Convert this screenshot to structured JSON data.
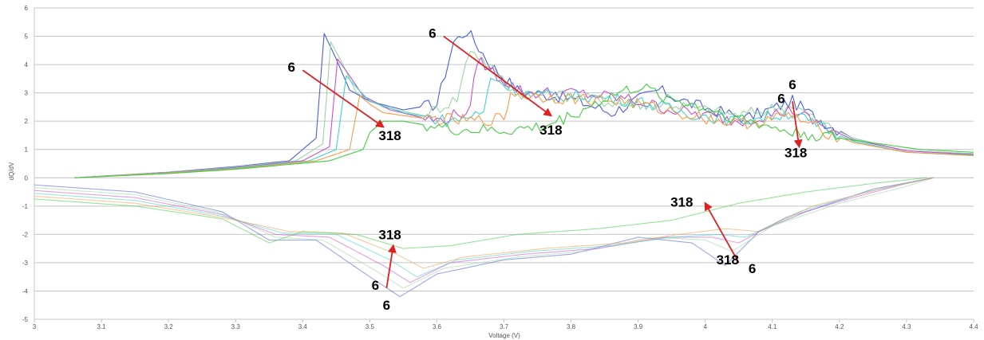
{
  "chart_data": {
    "type": "line",
    "title": "",
    "xlabel": "Voltage (V)",
    "ylabel": "dQ/dV",
    "xlim": [
      3.0,
      4.4
    ],
    "ylim": [
      -5,
      6
    ],
    "xticks": [
      "3",
      "3.1",
      "3.2",
      "3.3",
      "3.4",
      "3.5",
      "3.6",
      "3.7",
      "3.8",
      "3.9",
      "4",
      "4.1",
      "4.2",
      "4.3",
      "4.4"
    ],
    "yticks": [
      "6",
      "5",
      "4",
      "3",
      "2",
      "1",
      "0",
      "-1",
      "-2",
      "-3",
      "-4",
      "-5"
    ],
    "grid": "horizontal",
    "legend": "none",
    "series": [
      {
        "color": "#4a5fd6",
        "charge": [
          [
            3.06,
            0
          ],
          [
            3.2,
            0.2
          ],
          [
            3.3,
            0.4
          ],
          [
            3.38,
            0.6
          ],
          [
            3.42,
            1.4
          ],
          [
            3.432,
            5.1
          ],
          [
            3.45,
            4.2
          ],
          [
            3.47,
            3.1
          ],
          [
            3.5,
            2.7
          ],
          [
            3.55,
            2.4
          ],
          [
            3.6,
            2.6
          ],
          [
            3.625,
            4.8
          ],
          [
            3.645,
            5.2
          ],
          [
            3.68,
            4.0
          ],
          [
            3.72,
            3.1
          ],
          [
            3.8,
            2.8
          ],
          [
            3.86,
            2.3
          ],
          [
            3.93,
            3.1
          ],
          [
            3.98,
            2.6
          ],
          [
            4.06,
            2.1
          ],
          [
            4.13,
            2.7
          ],
          [
            4.16,
            2.2
          ],
          [
            4.22,
            1.4
          ],
          [
            4.3,
            0.95
          ],
          [
            4.4,
            0.85
          ]
        ],
        "discharge": [
          [
            3.0,
            -0.25
          ],
          [
            3.15,
            -0.5
          ],
          [
            3.28,
            -1.2
          ],
          [
            3.35,
            -2.2
          ],
          [
            3.42,
            -2.2
          ],
          [
            3.5,
            -3.5
          ],
          [
            3.545,
            -4.2
          ],
          [
            3.6,
            -3.4
          ],
          [
            3.7,
            -2.9
          ],
          [
            3.8,
            -2.7
          ],
          [
            3.9,
            -2.1
          ],
          [
            3.98,
            -2.3
          ],
          [
            4.03,
            -3.1
          ],
          [
            4.08,
            -1.9
          ],
          [
            4.15,
            -1.2
          ],
          [
            4.25,
            -0.4
          ],
          [
            4.34,
            0.0
          ]
        ]
      },
      {
        "color": "#9ad6a0",
        "charge": [
          [
            3.06,
            0
          ],
          [
            3.2,
            0.2
          ],
          [
            3.3,
            0.38
          ],
          [
            3.39,
            0.6
          ],
          [
            3.43,
            1.2
          ],
          [
            3.442,
            4.8
          ],
          [
            3.46,
            4.0
          ],
          [
            3.48,
            3.0
          ],
          [
            3.52,
            2.5
          ],
          [
            3.58,
            2.2
          ],
          [
            3.63,
            2.8
          ],
          [
            3.65,
            4.6
          ],
          [
            3.68,
            3.9
          ],
          [
            3.72,
            3.0
          ],
          [
            3.8,
            2.9
          ],
          [
            3.88,
            2.6
          ],
          [
            3.95,
            2.6
          ],
          [
            4.05,
            2.2
          ],
          [
            4.13,
            2.6
          ],
          [
            4.16,
            2.1
          ],
          [
            4.22,
            1.4
          ],
          [
            4.3,
            0.95
          ],
          [
            4.4,
            0.85
          ]
        ],
        "discharge": [
          [
            3.0,
            -0.35
          ],
          [
            3.15,
            -0.6
          ],
          [
            3.28,
            -1.25
          ],
          [
            3.36,
            -2.1
          ],
          [
            3.43,
            -2.2
          ],
          [
            3.51,
            -3.3
          ],
          [
            3.55,
            -3.9
          ],
          [
            3.61,
            -3.2
          ],
          [
            3.72,
            -2.8
          ],
          [
            3.82,
            -2.6
          ],
          [
            3.92,
            -2.1
          ],
          [
            4.0,
            -2.2
          ],
          [
            4.04,
            -2.6
          ],
          [
            4.1,
            -1.7
          ],
          [
            4.2,
            -0.9
          ],
          [
            4.3,
            -0.3
          ],
          [
            4.34,
            0.0
          ]
        ]
      },
      {
        "color": "#c850cf",
        "charge": [
          [
            3.06,
            0
          ],
          [
            3.2,
            0.19
          ],
          [
            3.3,
            0.36
          ],
          [
            3.4,
            0.6
          ],
          [
            3.44,
            1.1
          ],
          [
            3.452,
            4.2
          ],
          [
            3.47,
            3.6
          ],
          [
            3.49,
            2.9
          ],
          [
            3.53,
            2.4
          ],
          [
            3.6,
            2.0
          ],
          [
            3.65,
            2.4
          ],
          [
            3.66,
            4.2
          ],
          [
            3.69,
            3.6
          ],
          [
            3.73,
            3.0
          ],
          [
            3.8,
            3.0
          ],
          [
            3.88,
            2.8
          ],
          [
            3.95,
            2.4
          ],
          [
            4.05,
            2.0
          ],
          [
            4.13,
            2.4
          ],
          [
            4.16,
            2.0
          ],
          [
            4.22,
            1.35
          ],
          [
            4.3,
            0.95
          ],
          [
            4.4,
            0.82
          ]
        ],
        "discharge": [
          [
            3.0,
            -0.45
          ],
          [
            3.15,
            -0.7
          ],
          [
            3.28,
            -1.3
          ],
          [
            3.36,
            -2.0
          ],
          [
            3.44,
            -2.1
          ],
          [
            3.52,
            -3.1
          ],
          [
            3.56,
            -3.7
          ],
          [
            3.62,
            -3.0
          ],
          [
            3.73,
            -2.7
          ],
          [
            3.84,
            -2.5
          ],
          [
            3.94,
            -2.1
          ],
          [
            4.01,
            -2.1
          ],
          [
            4.05,
            -2.3
          ],
          [
            4.12,
            -1.4
          ],
          [
            4.22,
            -0.7
          ],
          [
            4.3,
            -0.2
          ],
          [
            4.34,
            0.0
          ]
        ]
      },
      {
        "color": "#40d4cc",
        "charge": [
          [
            3.06,
            0
          ],
          [
            3.2,
            0.18
          ],
          [
            3.3,
            0.34
          ],
          [
            3.41,
            0.6
          ],
          [
            3.45,
            1.0
          ],
          [
            3.465,
            3.6
          ],
          [
            3.48,
            3.2
          ],
          [
            3.5,
            2.7
          ],
          [
            3.55,
            2.3
          ],
          [
            3.62,
            2.0
          ],
          [
            3.67,
            2.3
          ],
          [
            3.68,
            3.6
          ],
          [
            3.7,
            3.3
          ],
          [
            3.74,
            2.9
          ],
          [
            3.82,
            2.9
          ],
          [
            3.9,
            2.7
          ],
          [
            3.97,
            2.3
          ],
          [
            4.05,
            2.0
          ],
          [
            4.13,
            2.3
          ],
          [
            4.16,
            1.9
          ],
          [
            4.22,
            1.3
          ],
          [
            4.3,
            0.9
          ],
          [
            4.4,
            0.8
          ]
        ],
        "discharge": [
          [
            3.0,
            -0.55
          ],
          [
            3.15,
            -0.8
          ],
          [
            3.28,
            -1.35
          ],
          [
            3.37,
            -1.95
          ],
          [
            3.45,
            -2.0
          ],
          [
            3.53,
            -2.9
          ],
          [
            3.57,
            -3.5
          ],
          [
            3.63,
            -2.9
          ],
          [
            3.74,
            -2.6
          ],
          [
            3.86,
            -2.4
          ],
          [
            3.95,
            -2.1
          ],
          [
            4.02,
            -2.0
          ],
          [
            4.06,
            -2.1
          ],
          [
            4.14,
            -1.2
          ],
          [
            4.24,
            -0.5
          ],
          [
            4.32,
            -0.1
          ],
          [
            4.34,
            0.0
          ]
        ]
      },
      {
        "color": "#f29c4c",
        "charge": [
          [
            3.06,
            0
          ],
          [
            3.2,
            0.17
          ],
          [
            3.3,
            0.32
          ],
          [
            3.42,
            0.6
          ],
          [
            3.47,
            1.0
          ],
          [
            3.485,
            2.9
          ],
          [
            3.5,
            2.6
          ],
          [
            3.52,
            2.3
          ],
          [
            3.58,
            2.1
          ],
          [
            3.65,
            2.0
          ],
          [
            3.7,
            2.1
          ],
          [
            3.71,
            3.0
          ],
          [
            3.74,
            2.9
          ],
          [
            3.8,
            2.8
          ],
          [
            3.88,
            2.7
          ],
          [
            3.96,
            2.3
          ],
          [
            4.05,
            1.9
          ],
          [
            4.13,
            2.2
          ],
          [
            4.16,
            1.8
          ],
          [
            4.22,
            1.25
          ],
          [
            4.3,
            0.9
          ],
          [
            4.4,
            0.78
          ]
        ],
        "discharge": [
          [
            3.0,
            -0.65
          ],
          [
            3.15,
            -0.9
          ],
          [
            3.28,
            -1.4
          ],
          [
            3.38,
            -1.9
          ],
          [
            3.46,
            -1.95
          ],
          [
            3.54,
            -2.7
          ],
          [
            3.58,
            -3.2
          ],
          [
            3.64,
            -2.8
          ],
          [
            3.76,
            -2.5
          ],
          [
            3.88,
            -2.3
          ],
          [
            3.96,
            -2.0
          ],
          [
            4.03,
            -1.8
          ],
          [
            4.08,
            -1.9
          ],
          [
            4.16,
            -1.0
          ],
          [
            4.26,
            -0.4
          ],
          [
            4.33,
            -0.05
          ],
          [
            4.34,
            0.0
          ]
        ]
      },
      {
        "color": "#44cc44",
        "charge": [
          [
            3.06,
            0
          ],
          [
            3.2,
            0.15
          ],
          [
            3.3,
            0.3
          ],
          [
            3.44,
            0.6
          ],
          [
            3.49,
            1.0
          ],
          [
            3.5,
            1.6
          ],
          [
            3.52,
            2.0
          ],
          [
            3.55,
            2.0
          ],
          [
            3.62,
            1.7
          ],
          [
            3.7,
            1.65
          ],
          [
            3.76,
            1.8
          ],
          [
            3.8,
            2.2
          ],
          [
            3.86,
            2.9
          ],
          [
            3.9,
            3.2
          ],
          [
            3.95,
            2.8
          ],
          [
            4.02,
            2.3
          ],
          [
            4.08,
            1.9
          ],
          [
            4.13,
            1.6
          ],
          [
            4.2,
            1.4
          ],
          [
            4.26,
            1.2
          ],
          [
            4.32,
            1.0
          ],
          [
            4.4,
            0.9
          ]
        ],
        "discharge": [
          [
            3.0,
            -0.75
          ],
          [
            3.15,
            -1.0
          ],
          [
            3.28,
            -1.45
          ],
          [
            3.35,
            -2.3
          ],
          [
            3.4,
            -1.9
          ],
          [
            3.48,
            -2.0
          ],
          [
            3.55,
            -2.5
          ],
          [
            3.62,
            -2.4
          ],
          [
            3.72,
            -2.0
          ],
          [
            3.84,
            -1.8
          ],
          [
            3.95,
            -1.5
          ],
          [
            4.05,
            -0.9
          ],
          [
            4.15,
            -0.5
          ],
          [
            4.25,
            -0.2
          ],
          [
            4.33,
            0.0
          ]
        ]
      }
    ],
    "annotations": [
      {
        "label": "6",
        "from": [
          3.4,
          3.8
        ],
        "to": [
          3.52,
          1.8
        ]
      },
      {
        "label": "318",
        "at": [
          3.53,
          1.5
        ]
      },
      {
        "label": "6",
        "from": [
          3.61,
          5.0
        ],
        "to": [
          3.77,
          2.2
        ]
      },
      {
        "label": "318",
        "at": [
          3.77,
          1.7
        ]
      },
      {
        "label": "6",
        "from": [
          4.13,
          2.7
        ],
        "to": [
          4.14,
          1.1
        ]
      },
      {
        "label": "6",
        "at": [
          4.13,
          3.3
        ]
      },
      {
        "label": "318",
        "at": [
          4.135,
          0.9
        ]
      },
      {
        "label": "318",
        "from": [
          4.05,
          -3.0
        ],
        "to": [
          4.0,
          -0.9
        ]
      },
      {
        "label": "318",
        "at": [
          3.965,
          -0.85
        ]
      },
      {
        "label": "6",
        "at": [
          4.07,
          -3.2
        ]
      },
      {
        "label": "6",
        "from": [
          3.525,
          -3.9
        ],
        "to": [
          3.535,
          -2.4
        ]
      },
      {
        "label": "318",
        "at": [
          3.53,
          -2.0
        ]
      },
      {
        "label": "6",
        "at": [
          3.525,
          -4.5
        ]
      }
    ]
  }
}
